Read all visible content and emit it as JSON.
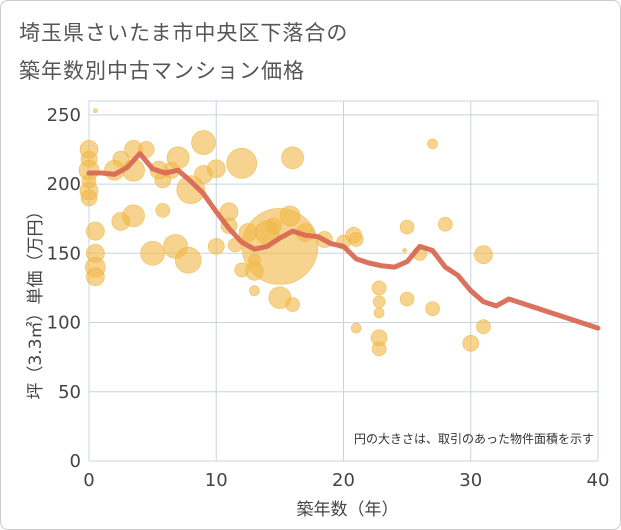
{
  "title_line1": "埼玉県さいたま市中央区下落合の",
  "title_line2": "築年数別中古マンション価格",
  "colors": {
    "bubble": "#f0b848",
    "line": "#d96a55",
    "grid": "#c8d4df",
    "background": "#ffffff"
  },
  "chart_data": {
    "type": "scatter",
    "xlabel": "築年数（年）",
    "ylabel": "坪（3.3㎡）単価（万円）",
    "xlim": [
      0,
      40
    ],
    "ylim": [
      0,
      260
    ],
    "xticks": [
      "0",
      "10",
      "20",
      "30",
      "40"
    ],
    "yticks": [
      "0",
      "50",
      "100",
      "150",
      "200",
      "250"
    ],
    "grid": true,
    "note": "円の大きさは、取引のあった物件面積を示す",
    "bubbles": [
      {
        "x": 0,
        "y": 225,
        "r": 9
      },
      {
        "x": 0,
        "y": 218,
        "r": 8
      },
      {
        "x": 0,
        "y": 210,
        "r": 10
      },
      {
        "x": 0,
        "y": 202,
        "r": 7
      },
      {
        "x": 0,
        "y": 195,
        "r": 9
      },
      {
        "x": 0,
        "y": 190,
        "r": 8
      },
      {
        "x": 0.5,
        "y": 253,
        "r": 2
      },
      {
        "x": 0.5,
        "y": 166,
        "r": 9
      },
      {
        "x": 0.5,
        "y": 150,
        "r": 9
      },
      {
        "x": 0.5,
        "y": 140,
        "r": 10
      },
      {
        "x": 0.5,
        "y": 133,
        "r": 9
      },
      {
        "x": 2,
        "y": 210,
        "r": 10
      },
      {
        "x": 2.5,
        "y": 218,
        "r": 8
      },
      {
        "x": 2.5,
        "y": 173,
        "r": 9
      },
      {
        "x": 3.5,
        "y": 225,
        "r": 9
      },
      {
        "x": 3.5,
        "y": 210,
        "r": 11
      },
      {
        "x": 3.5,
        "y": 177,
        "r": 11
      },
      {
        "x": 4.5,
        "y": 225,
        "r": 8
      },
      {
        "x": 5,
        "y": 150,
        "r": 12
      },
      {
        "x": 5.5,
        "y": 210,
        "r": 9
      },
      {
        "x": 5.8,
        "y": 203,
        "r": 8
      },
      {
        "x": 5.8,
        "y": 181,
        "r": 7
      },
      {
        "x": 6.5,
        "y": 210,
        "r": 8
      },
      {
        "x": 6.8,
        "y": 155,
        "r": 12
      },
      {
        "x": 7,
        "y": 219,
        "r": 11
      },
      {
        "x": 7.8,
        "y": 145,
        "r": 13
      },
      {
        "x": 8,
        "y": 196,
        "r": 14
      },
      {
        "x": 9,
        "y": 230,
        "r": 12
      },
      {
        "x": 9,
        "y": 207,
        "r": 9
      },
      {
        "x": 10,
        "y": 211,
        "r": 9
      },
      {
        "x": 10,
        "y": 155,
        "r": 8
      },
      {
        "x": 11,
        "y": 180,
        "r": 9
      },
      {
        "x": 11,
        "y": 170,
        "r": 8
      },
      {
        "x": 11.5,
        "y": 156,
        "r": 7
      },
      {
        "x": 12,
        "y": 215,
        "r": 15
      },
      {
        "x": 12.5,
        "y": 165,
        "r": 9
      },
      {
        "x": 12,
        "y": 138,
        "r": 7
      },
      {
        "x": 13,
        "y": 145,
        "r": 6
      },
      {
        "x": 13,
        "y": 137,
        "r": 9
      },
      {
        "x": 13,
        "y": 123,
        "r": 5
      },
      {
        "x": 14,
        "y": 165,
        "r": 12
      },
      {
        "x": 14.5,
        "y": 170,
        "r": 8
      },
      {
        "x": 15,
        "y": 155,
        "r": 38
      },
      {
        "x": 15,
        "y": 118,
        "r": 11
      },
      {
        "x": 15.8,
        "y": 177,
        "r": 10
      },
      {
        "x": 16,
        "y": 113,
        "r": 7
      },
      {
        "x": 16,
        "y": 219,
        "r": 11
      },
      {
        "x": 17,
        "y": 165,
        "r": 9
      },
      {
        "x": 18.5,
        "y": 160,
        "r": 8
      },
      {
        "x": 20,
        "y": 158,
        "r": 7
      },
      {
        "x": 20.8,
        "y": 163,
        "r": 8
      },
      {
        "x": 21,
        "y": 160,
        "r": 7
      },
      {
        "x": 21,
        "y": 96,
        "r": 5
      },
      {
        "x": 25,
        "y": 169,
        "r": 7
      },
      {
        "x": 25,
        "y": 117,
        "r": 7
      },
      {
        "x": 24.8,
        "y": 152,
        "r": 2
      },
      {
        "x": 26,
        "y": 150,
        "r": 7
      },
      {
        "x": 27,
        "y": 229,
        "r": 5
      },
      {
        "x": 27,
        "y": 110,
        "r": 7
      },
      {
        "x": 28,
        "y": 171,
        "r": 7
      },
      {
        "x": 22.8,
        "y": 125,
        "r": 7
      },
      {
        "x": 22.8,
        "y": 115,
        "r": 6
      },
      {
        "x": 22.8,
        "y": 107,
        "r": 5
      },
      {
        "x": 22.8,
        "y": 89,
        "r": 8
      },
      {
        "x": 22.8,
        "y": 81,
        "r": 7
      },
      {
        "x": 30,
        "y": 85,
        "r": 8
      },
      {
        "x": 31,
        "y": 149,
        "r": 9
      },
      {
        "x": 31,
        "y": 97,
        "r": 7
      }
    ],
    "line": {
      "x": [
        0,
        1,
        2,
        3,
        4,
        5,
        6,
        7,
        8,
        9,
        10,
        11,
        12,
        13,
        14,
        15,
        16,
        17,
        18,
        19,
        20,
        21,
        22,
        23,
        24,
        25,
        26,
        27,
        28,
        29,
        30,
        31,
        32,
        33,
        40
      ],
      "y": [
        208,
        208,
        207,
        212,
        222,
        211,
        208,
        210,
        202,
        193,
        180,
        168,
        158,
        153,
        155,
        161,
        166,
        163,
        162,
        157,
        155,
        146,
        143,
        141,
        140,
        144,
        155,
        152,
        140,
        134,
        123,
        115,
        112,
        117,
        96
      ]
    }
  }
}
